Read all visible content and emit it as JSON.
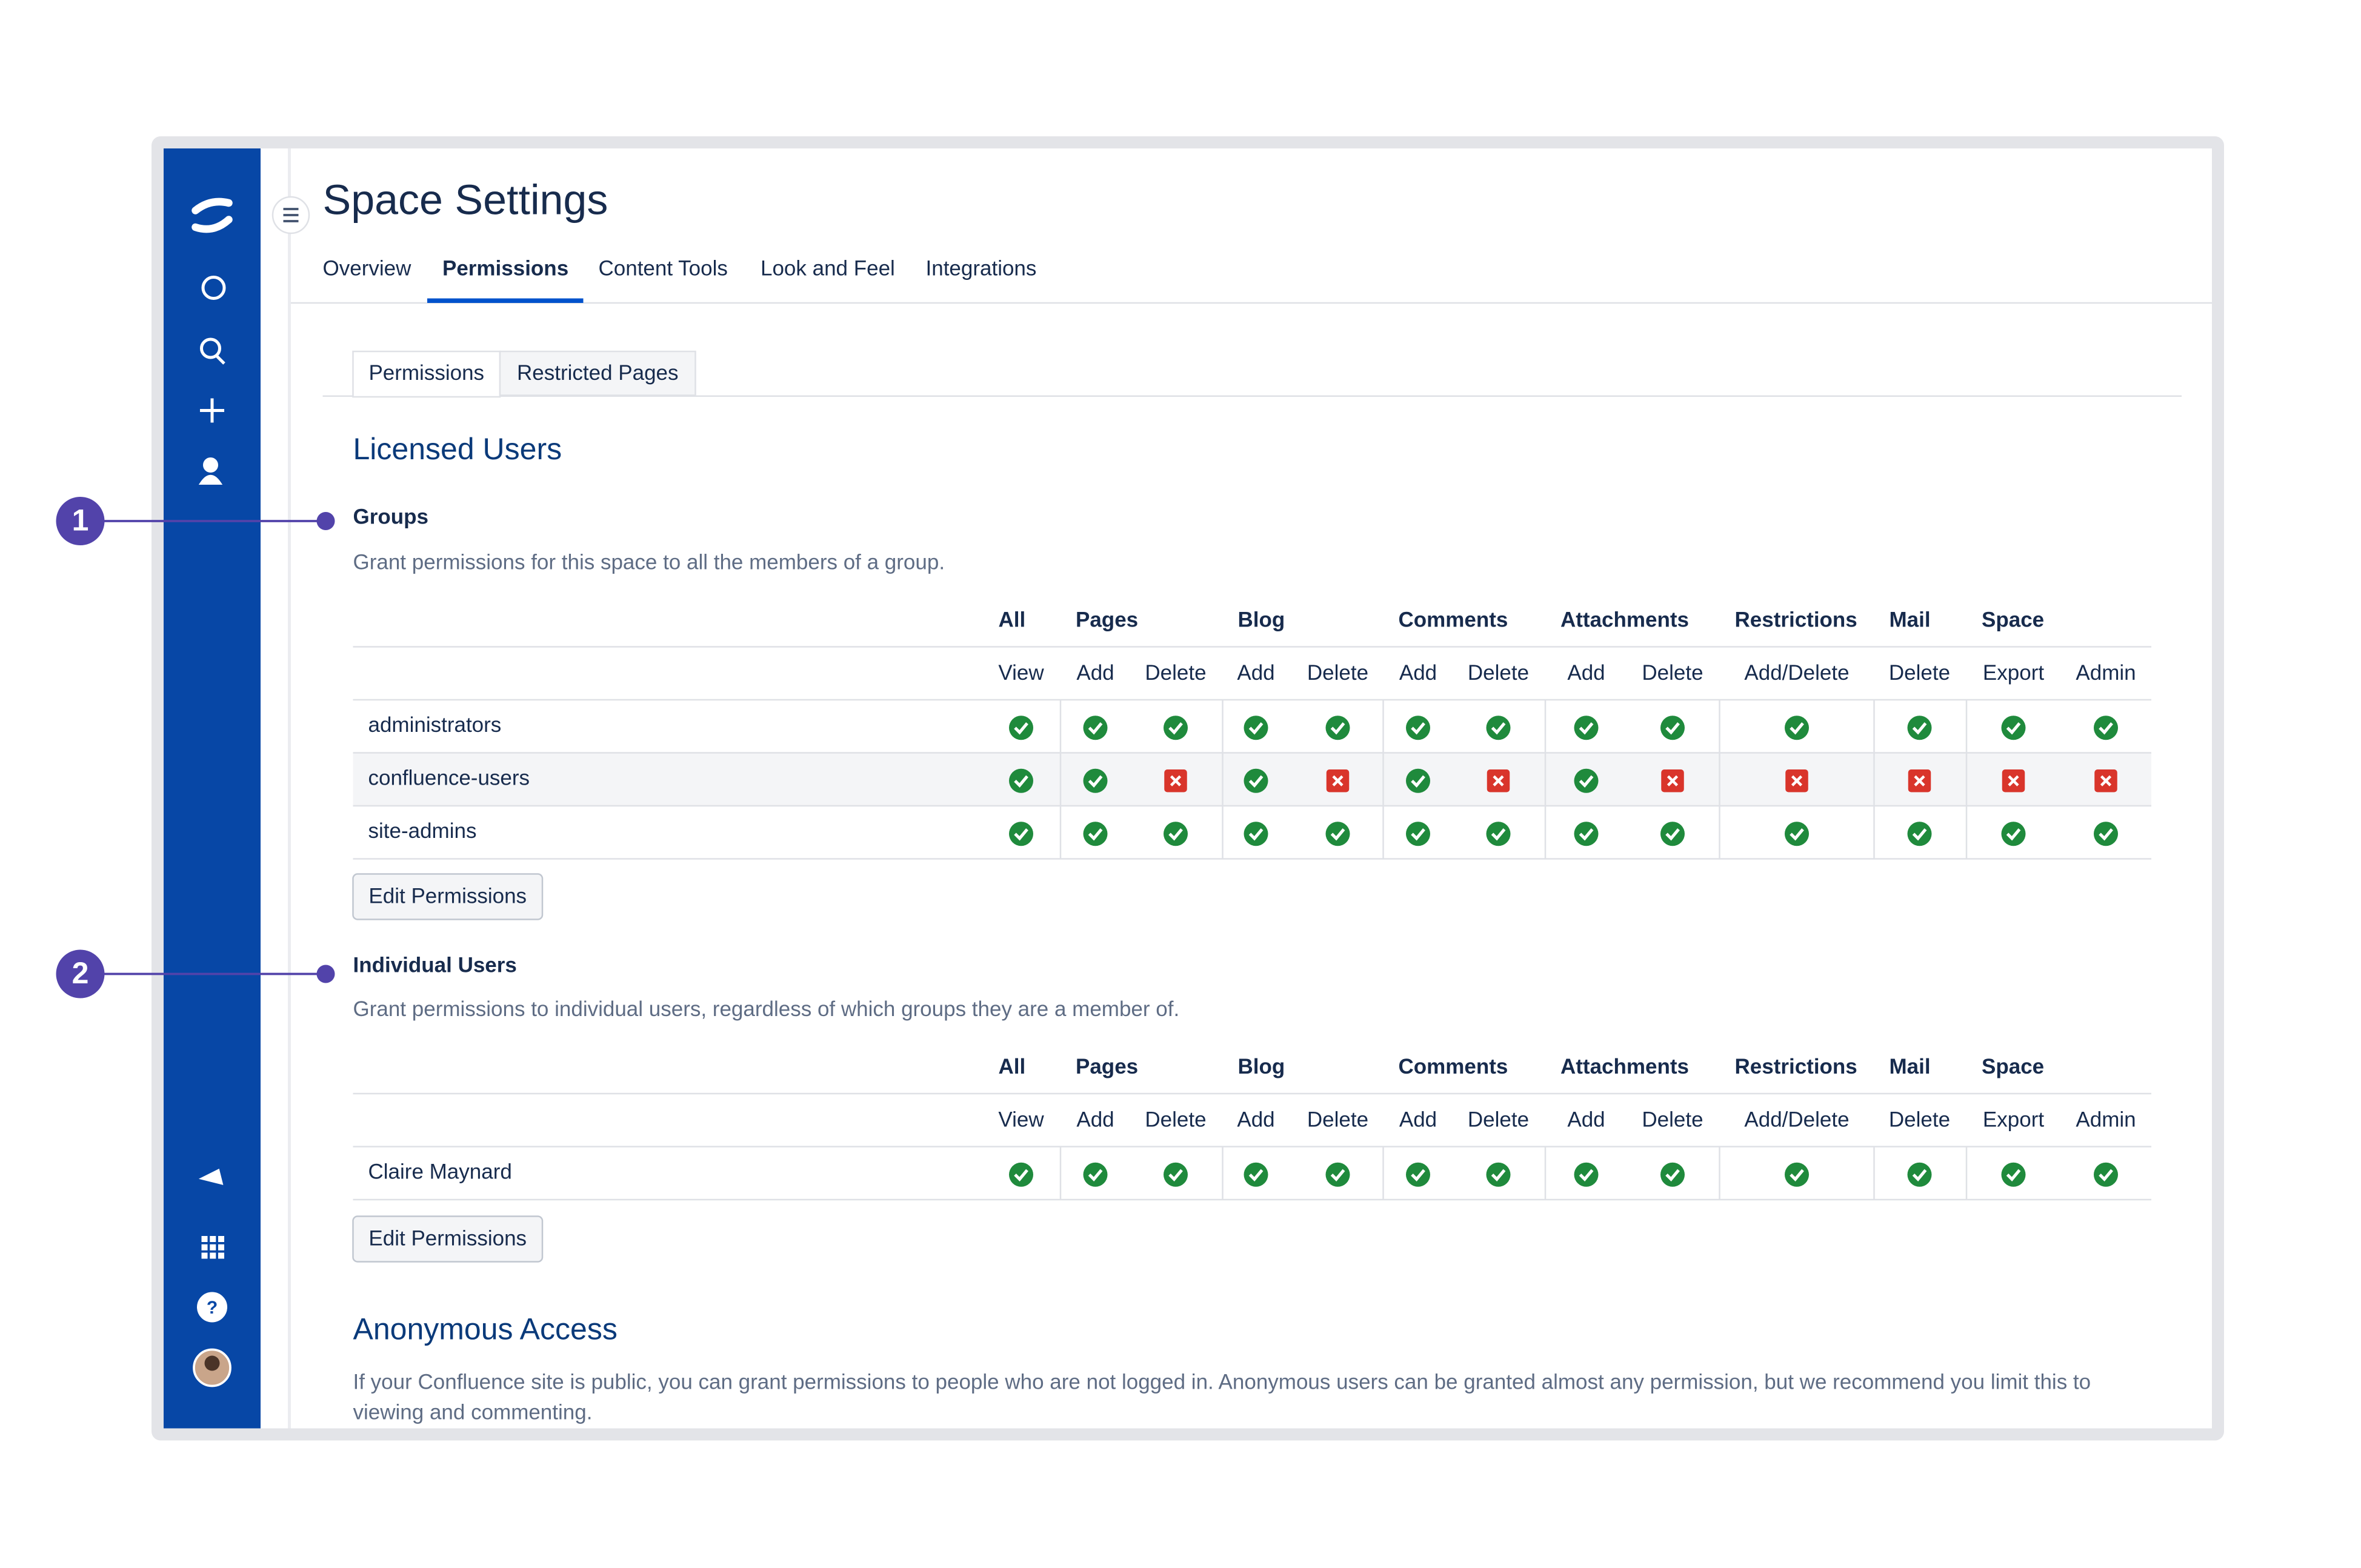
{
  "header": {
    "title": "Space Settings",
    "tabs": [
      "Overview",
      "Permissions",
      "Content Tools",
      "Look and Feel",
      "Integrations"
    ]
  },
  "subtabs": [
    "Permissions",
    "Restricted Pages"
  ],
  "licensed_users": {
    "title": "Licensed Users"
  },
  "groups": {
    "title": "Groups",
    "description": "Grant permissions for this space to all the members of a group.",
    "table": {
      "group_headers": [
        "All",
        "Pages",
        "Blog",
        "Comments",
        "Attachments",
        "Restrictions",
        "Mail",
        "Space"
      ],
      "columns": [
        "View",
        "Add",
        "Delete",
        "Add",
        "Delete",
        "Add",
        "Delete",
        "Add",
        "Delete",
        "Add/Delete",
        "Delete",
        "Export",
        "Admin"
      ],
      "rows": [
        {
          "name": "administrators",
          "permissions": [
            true,
            true,
            true,
            true,
            true,
            true,
            true,
            true,
            true,
            true,
            true,
            true,
            true
          ]
        },
        {
          "name": "confluence-users",
          "permissions": [
            true,
            true,
            false,
            true,
            false,
            true,
            false,
            true,
            false,
            false,
            false,
            false,
            false
          ]
        },
        {
          "name": "site-admins",
          "permissions": [
            true,
            true,
            true,
            true,
            true,
            true,
            true,
            true,
            true,
            true,
            true,
            true,
            true
          ]
        }
      ]
    },
    "button": "Edit Permissions"
  },
  "individual_users": {
    "title": "Individual Users",
    "description": "Grant permissions to individual users, regardless of which groups they are a member of.",
    "table": {
      "group_headers": [
        "All",
        "Pages",
        "Blog",
        "Comments",
        "Attachments",
        "Restrictions",
        "Mail",
        "Space"
      ],
      "columns": [
        "View",
        "Add",
        "Delete",
        "Add",
        "Delete",
        "Add",
        "Delete",
        "Add",
        "Delete",
        "Add/Delete",
        "Delete",
        "Export",
        "Admin"
      ],
      "rows": [
        {
          "name": "Claire Maynard",
          "permissions": [
            true,
            true,
            true,
            true,
            true,
            true,
            true,
            true,
            true,
            true,
            true,
            true,
            true
          ]
        }
      ]
    },
    "button": "Edit Permissions"
  },
  "anonymous": {
    "title": "Anonymous Access",
    "description": "If your Confluence site is public, you can grant permissions to people who are not logged in. Anonymous users can be granted almost any permission, but we recommend you limit this to viewing and commenting."
  },
  "callouts": [
    "1",
    "2"
  ]
}
